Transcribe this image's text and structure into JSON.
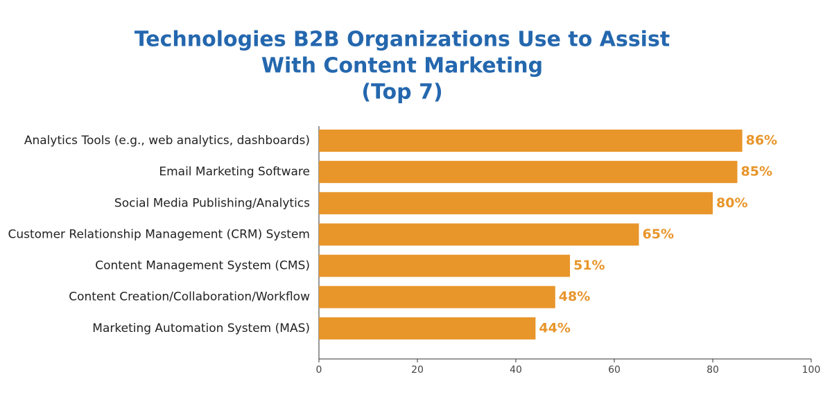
{
  "chart_data": {
    "type": "hbar",
    "title": [
      "Technologies B2B Organizations Use to Assist",
      "With Content Marketing",
      "(Top 7)"
    ],
    "categories": [
      "Analytics Tools (e.g., web analytics, dashboards)",
      "Email Marketing Software",
      "Social Media Publishing/Analytics",
      "Customer Relationship Management (CRM) System",
      "Content Management System (CMS)",
      "Content Creation/Collaboration/Workflow",
      "Marketing Automation System (MAS)"
    ],
    "values": [
      86,
      85,
      80,
      65,
      51,
      48,
      44
    ],
    "value_labels": [
      "86%",
      "85%",
      "80%",
      "65%",
      "51%",
      "48%",
      "44%"
    ],
    "color": "#e8952a",
    "title_color": "#2467ae",
    "xlim": [
      0,
      100
    ],
    "xticks": [
      0,
      20,
      40,
      60,
      80,
      100
    ]
  }
}
